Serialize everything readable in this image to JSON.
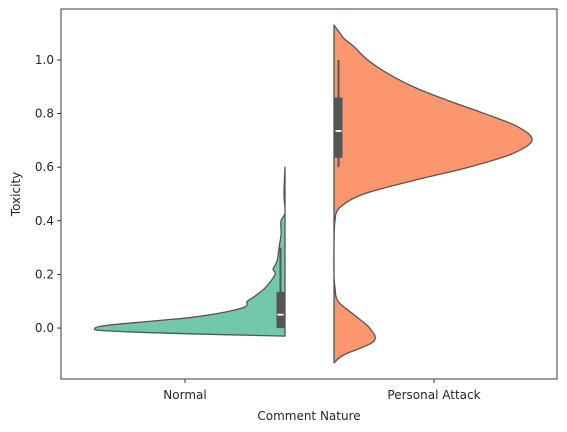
{
  "chart_data": {
    "type": "violin",
    "split": true,
    "title": "",
    "xlabel": "Comment Nature",
    "ylabel": "Toxicity",
    "categories": [
      "Normal",
      "Personal Attack"
    ],
    "ylim": [
      -0.19,
      1.19
    ],
    "yticks": [
      0.0,
      0.2,
      0.4,
      0.6,
      0.8,
      1.0
    ],
    "ytick_labels": [
      "0.0",
      "0.2",
      "0.4",
      "0.6",
      "0.8",
      "1.0"
    ],
    "grid": false,
    "legend": "none",
    "series": [
      {
        "category": "Normal",
        "side": "left",
        "color": "#66c2a5",
        "density_profile": [
          [
            -0.03,
            0.0
          ],
          [
            -0.02,
            0.55
          ],
          [
            -0.01,
            0.91
          ],
          [
            0.0,
            0.96
          ],
          [
            0.01,
            0.9
          ],
          [
            0.02,
            0.76
          ],
          [
            0.03,
            0.61
          ],
          [
            0.04,
            0.47
          ],
          [
            0.06,
            0.3
          ],
          [
            0.08,
            0.2
          ],
          [
            0.1,
            0.19
          ],
          [
            0.12,
            0.15
          ],
          [
            0.15,
            0.1
          ],
          [
            0.2,
            0.05
          ],
          [
            0.22,
            0.06
          ],
          [
            0.25,
            0.04
          ],
          [
            0.3,
            0.03
          ],
          [
            0.35,
            0.02
          ],
          [
            0.4,
            0.02
          ],
          [
            0.43,
            0.0
          ],
          [
            0.5,
            0.005
          ],
          [
            0.6,
            0.0
          ]
        ],
        "box": {
          "q1": 0.0,
          "median": 0.05,
          "q3": 0.135,
          "whisker_low": 0.0,
          "whisker_high": 0.3
        }
      },
      {
        "category": "Personal Attack",
        "side": "right",
        "color": "#fc8d62",
        "density_profile": [
          [
            -0.13,
            0.0
          ],
          [
            -0.1,
            0.05
          ],
          [
            -0.05,
            0.2
          ],
          [
            0.0,
            0.18
          ],
          [
            0.05,
            0.1
          ],
          [
            0.1,
            0.02
          ],
          [
            0.15,
            0.005
          ],
          [
            0.2,
            0.0
          ],
          [
            0.3,
            0.0
          ],
          [
            0.4,
            0.005
          ],
          [
            0.45,
            0.03
          ],
          [
            0.5,
            0.15
          ],
          [
            0.55,
            0.4
          ],
          [
            0.6,
            0.68
          ],
          [
            0.65,
            0.9
          ],
          [
            0.7,
            1.0
          ],
          [
            0.75,
            0.93
          ],
          [
            0.8,
            0.76
          ],
          [
            0.85,
            0.57
          ],
          [
            0.9,
            0.4
          ],
          [
            0.95,
            0.27
          ],
          [
            1.0,
            0.17
          ],
          [
            1.05,
            0.1
          ],
          [
            1.08,
            0.05
          ],
          [
            1.1,
            0.03
          ],
          [
            1.13,
            0.0
          ]
        ],
        "box": {
          "q1": 0.635,
          "median": 0.735,
          "q3": 0.86,
          "whisker_low": 0.6,
          "whisker_high": 1.0
        }
      }
    ]
  }
}
